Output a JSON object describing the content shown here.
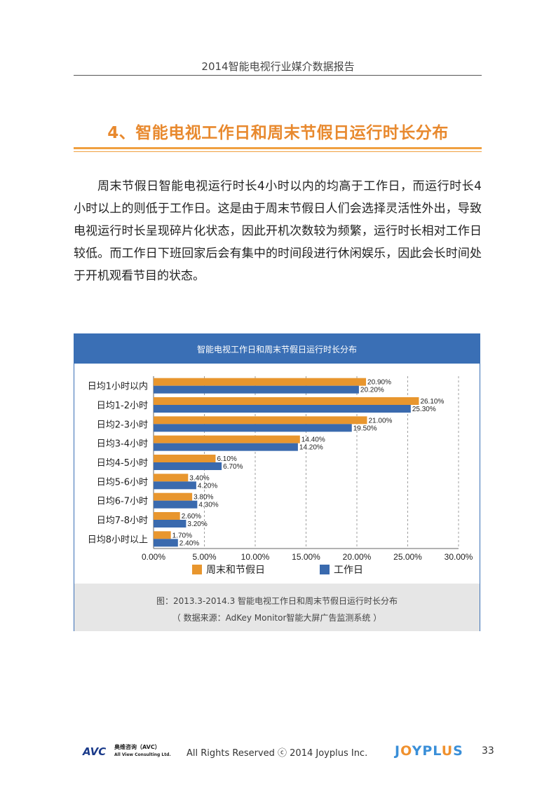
{
  "header": {
    "title": "2014智能电视行业媒介数据报告"
  },
  "section": {
    "title": "4、智能电视工作日和周末节假日运行时长分布"
  },
  "body": {
    "paragraph": "周末节假日智能电视运行时长4小时以内的均高于工作日，而运行时长4小时以上的则低于工作日。这是由于周末节假日人们会选择灵活性外出，导致电视运行时长呈现碎片化状态，因此开机次数较为频繁，运行时长相对工作日较低。而工作日下班回家后会有集中的时间段进行休闲娱乐，因此会长时间处于开机观看节目的状态。"
  },
  "chart_data": {
    "type": "bar",
    "orientation": "horizontal",
    "title": "智能电视工作日和周末节假日运行时长分布",
    "categories": [
      "日均1小时以内",
      "日均1-2小时",
      "日均2-3小时",
      "日均3-4小时",
      "日均4-5小时",
      "日均5-6小时",
      "日均6-7小时",
      "日均7-8小时",
      "日均8小时以上"
    ],
    "series": [
      {
        "name": "周末和节假日",
        "color": "#e8962e",
        "values": [
          20.9,
          26.1,
          21.0,
          14.4,
          6.1,
          3.4,
          3.8,
          2.6,
          1.7
        ],
        "labels": [
          "20.90%",
          "26.10%",
          "21.00%",
          "14.40%",
          "6.10%",
          "3.40%",
          "3.80%",
          "2.60%",
          "1.70%"
        ]
      },
      {
        "name": "工作日",
        "color": "#3a6aae",
        "values": [
          20.2,
          25.3,
          19.5,
          14.2,
          6.7,
          4.2,
          4.3,
          3.2,
          2.4
        ],
        "labels": [
          "20.20%",
          "25.30%",
          "19.50%",
          "14.20%",
          "6.70%",
          "4.20%",
          "4.30%",
          "3.20%",
          "2.40%"
        ]
      }
    ],
    "xlim": [
      0,
      30
    ],
    "xticks": [
      "0.00%",
      "5.00%",
      "10.00%",
      "15.00%",
      "20.00%",
      "25.00%",
      "30.00%"
    ],
    "grid": "vertical dashed",
    "legend": "bottom"
  },
  "caption": {
    "line1": "图：2013.3-2014.3 智能电视工作日和周末节假日运行时长分布",
    "line2": "（ 数据来源：AdKey Monitor智能大屏广告监测系统 ）"
  },
  "footer": {
    "avc_logo": "AVC",
    "avc_cn": "奥维咨询（AVC）",
    "avc_en": "All View Consulting Ltd.",
    "rights": "All Rights Reserved ⓒ 2014 Joyplus Inc.",
    "brand": "JOYPLUS",
    "page_number": "33"
  }
}
